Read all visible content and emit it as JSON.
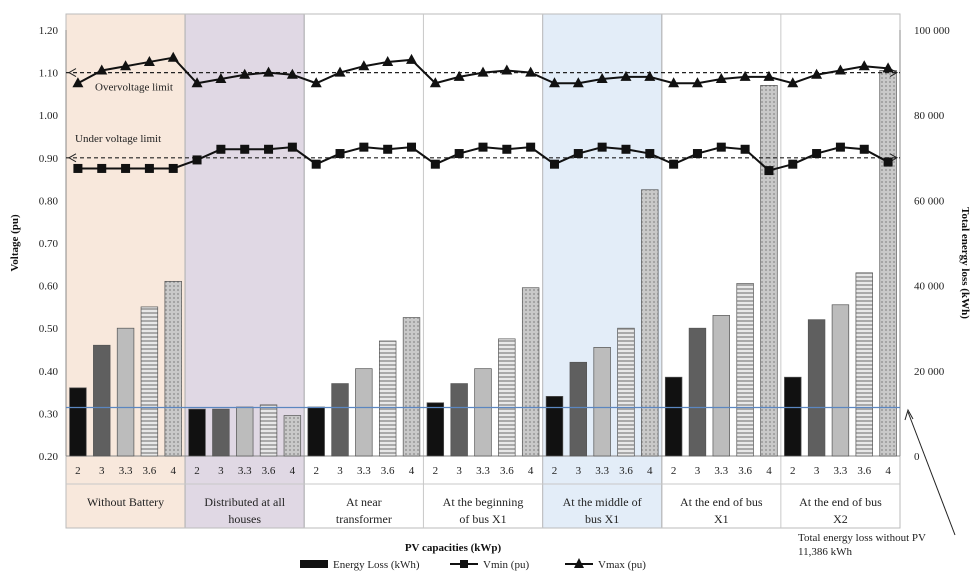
{
  "chart_data": {
    "type": "bar",
    "xlabel": "PV capacities (kWp)",
    "ylabel": "Voltage (pu)",
    "y2label": "Total energy loss (kWh)",
    "ylim": [
      0.2,
      1.2
    ],
    "y2lim": [
      0,
      100000
    ],
    "yticks": [
      "0.20",
      "0.30",
      "0.40",
      "0.50",
      "0.60",
      "0.70",
      "0.80",
      "0.90",
      "1.00",
      "1.10",
      "1.20"
    ],
    "y2ticks": [
      "0",
      "20 000",
      "40 000",
      "60 000",
      "80 000",
      "100 000"
    ],
    "pv_levels": [
      "2",
      "3",
      "3.3",
      "3.6",
      "4"
    ],
    "groups": [
      {
        "label": [
          "Without Battery"
        ],
        "highlight": "#f8e8dc"
      },
      {
        "label": [
          "Distributed at all",
          "houses"
        ],
        "highlight": "#e0d8e4"
      },
      {
        "label": [
          "At near",
          "transformer"
        ],
        "highlight": ""
      },
      {
        "label": [
          "At the beginning",
          "of bus X1"
        ],
        "highlight": ""
      },
      {
        "label": [
          "At the middle of",
          "bus X1"
        ],
        "highlight": "#e3edf8"
      },
      {
        "label": [
          "At the end of bus",
          "X1"
        ],
        "highlight": ""
      },
      {
        "label": [
          "At the end of bus",
          "X2"
        ],
        "highlight": ""
      }
    ],
    "series": [
      {
        "name": "Energy Loss (kWh)",
        "axis": "right",
        "values": [
          [
            16000,
            26000,
            30000,
            35000,
            41000
          ],
          [
            11000,
            11000,
            11500,
            12000,
            9500
          ],
          [
            11500,
            17000,
            20500,
            27000,
            32500
          ],
          [
            12500,
            17000,
            20500,
            27500,
            39500
          ],
          [
            14000,
            22000,
            25500,
            30000,
            62500
          ],
          [
            18500,
            30000,
            33000,
            40500,
            87000
          ],
          [
            18500,
            32000,
            35500,
            43000,
            90500
          ]
        ]
      },
      {
        "name": "Vmin (pu)",
        "axis": "left",
        "values": [
          [
            0.875,
            0.875,
            0.875,
            0.875,
            0.875
          ],
          [
            0.895,
            0.92,
            0.92,
            0.92,
            0.925
          ],
          [
            0.885,
            0.91,
            0.925,
            0.92,
            0.925
          ],
          [
            0.885,
            0.91,
            0.925,
            0.92,
            0.925
          ],
          [
            0.885,
            0.91,
            0.925,
            0.92,
            0.91
          ],
          [
            0.885,
            0.91,
            0.925,
            0.92,
            0.87
          ],
          [
            0.885,
            0.91,
            0.925,
            0.92,
            0.89
          ]
        ]
      },
      {
        "name": "Vmax (pu)",
        "axis": "left",
        "values": [
          [
            1.075,
            1.105,
            1.115,
            1.125,
            1.135
          ],
          [
            1.075,
            1.085,
            1.095,
            1.1,
            1.095
          ],
          [
            1.075,
            1.1,
            1.115,
            1.125,
            1.13
          ],
          [
            1.075,
            1.09,
            1.1,
            1.105,
            1.1
          ],
          [
            1.075,
            1.075,
            1.085,
            1.09,
            1.09
          ],
          [
            1.075,
            1.075,
            1.085,
            1.09,
            1.09
          ],
          [
            1.075,
            1.095,
            1.105,
            1.115,
            1.11
          ]
        ]
      }
    ],
    "reference_lines": [
      {
        "label": "Overvoltage limit",
        "value": 1.1,
        "axis": "left"
      },
      {
        "label": "Under voltage limit",
        "value": 0.9,
        "axis": "left"
      }
    ],
    "baseline": {
      "value": 11386,
      "axis": "right",
      "annotation": [
        "Total energy loss without PV",
        "11,386 kWh"
      ]
    },
    "legend": {
      "position": "bottom",
      "entries": [
        "Energy Loss (kWh)",
        "Vmin (pu)",
        "Vmax (pu)"
      ]
    }
  }
}
